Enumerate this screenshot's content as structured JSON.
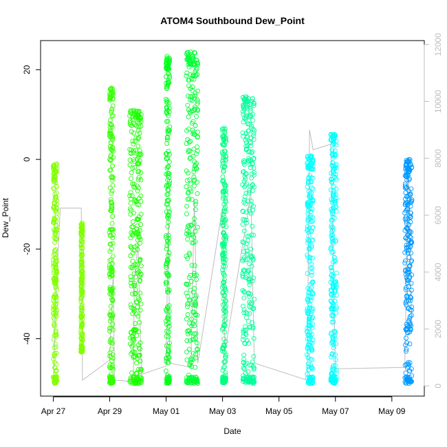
{
  "chart_data": {
    "type": "scatter",
    "title": "ATOM4 Southbound Dew_Point",
    "xlabel": "Date",
    "ylabel": "Dew_Point",
    "x_range_days_from_apr27": [
      -0.45,
      13.15
    ],
    "ylim": [
      -52.8,
      26.5
    ],
    "y2lim": [
      -360,
      12140
    ],
    "x_ticks": [
      {
        "date": "2021-04-27",
        "label": "Apr 27"
      },
      {
        "date": "2021-04-29",
        "label": "Apr 29"
      },
      {
        "date": "2021-05-01",
        "label": "May 01"
      },
      {
        "date": "2021-05-03",
        "label": "May 03"
      },
      {
        "date": "2021-05-05",
        "label": "May 05"
      },
      {
        "date": "2021-05-07",
        "label": "May 07"
      },
      {
        "date": "2021-05-09",
        "label": "May 09"
      }
    ],
    "y_ticks": [
      -40,
      -20,
      0,
      20
    ],
    "y2_ticks": [
      0,
      2000,
      4000,
      6000,
      8000,
      10000,
      12000
    ],
    "grid": false,
    "legend": "none",
    "marker": "open-circle",
    "segments": [
      {
        "start": "2021-04-27T00:00",
        "end": "2021-04-27T03:00",
        "y_min": -50,
        "y_max": -1,
        "color": "#80ff00"
      },
      {
        "start": "2021-04-27T23:30",
        "end": "2021-04-28T01:00",
        "y_min": -43,
        "y_max": -14,
        "color": "#80ff00"
      },
      {
        "start": "2021-04-28T23:50",
        "end": "2021-04-29T03:00",
        "y_min": -50,
        "y_max": 16,
        "color": "#33ff00"
      },
      {
        "start": "2021-04-29T17:00",
        "end": "2021-04-30T03:00",
        "y_min": -50,
        "y_max": 11,
        "color": "#1aff00"
      },
      {
        "start": "2021-04-30T23:50",
        "end": "2021-05-01T03:00",
        "y_min": -50,
        "y_max": 23,
        "color": "#00ff1a"
      },
      {
        "start": "2021-05-01T17:00",
        "end": "2021-05-02T03:00",
        "y_min": -50,
        "y_max": 24,
        "color": "#00ff33"
      },
      {
        "start": "2021-05-02T23:50",
        "end": "2021-05-03T03:00",
        "y_min": -50,
        "y_max": 7,
        "color": "#00ff80"
      },
      {
        "start": "2021-05-03T17:00",
        "end": "2021-05-04T03:00",
        "y_min": -50,
        "y_max": 14,
        "color": "#00ff99"
      },
      {
        "start": "2021-05-05T23:50",
        "end": "2021-05-06T05:00",
        "y_min": -50,
        "y_max": 1,
        "color": "#00ffff"
      },
      {
        "start": "2021-05-06T20:00",
        "end": "2021-05-07T01:00",
        "y_min": -50,
        "y_max": 6,
        "color": "#00ffff"
      },
      {
        "start": "2021-05-09T11:00",
        "end": "2021-05-09T17:00",
        "y_min": -50,
        "y_max": 0,
        "color": "#0099ff"
      }
    ],
    "secondary_line": {
      "color": "#bdbdbd",
      "points": [
        [
          "2021-04-27T00:00",
          0
        ],
        [
          "2021-04-27T02:00",
          3000
        ],
        [
          "2021-04-27T06:00",
          6250
        ],
        [
          "2021-04-27T23:50",
          6250
        ],
        [
          "2021-04-28T00:50",
          200
        ],
        [
          "2021-04-28T23:50",
          900
        ],
        [
          "2021-04-29T03:00",
          4000
        ],
        [
          "2021-04-29T04:00",
          200
        ],
        [
          "2021-04-29T20:00",
          150
        ],
        [
          "2021-04-29T21:00",
          3800
        ],
        [
          "2021-04-30T00:00",
          5000
        ],
        [
          "2021-04-30T03:00",
          400
        ],
        [
          "2021-04-30T23:50",
          700
        ],
        [
          "2021-05-01T02:00",
          6000
        ],
        [
          "2021-05-01T03:00",
          800
        ],
        [
          "2021-05-01T21:00",
          650
        ],
        [
          "2021-05-02T00:00",
          6500
        ],
        [
          "2021-05-02T03:00",
          800
        ],
        [
          "2021-05-02T23:50",
          6250
        ],
        [
          "2021-05-03T02:00",
          1200
        ],
        [
          "2021-05-03T22:00",
          6200
        ],
        [
          "2021-05-04T00:00",
          7000
        ],
        [
          "2021-05-04T03:00",
          800
        ],
        [
          "2021-05-06T00:00",
          200
        ],
        [
          "2021-05-06T02:00",
          9000
        ],
        [
          "2021-05-06T05:00",
          8300
        ],
        [
          "2021-05-06T20:00",
          8500
        ],
        [
          "2021-05-07T00:00",
          600
        ],
        [
          "2021-05-09T11:00",
          650
        ],
        [
          "2021-05-09T14:00",
          8000
        ],
        [
          "2021-05-09T17:00",
          2000
        ]
      ]
    }
  }
}
